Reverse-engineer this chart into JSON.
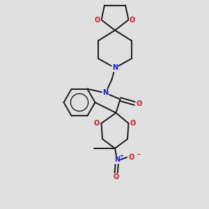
{
  "bg_color": "#e0e0e0",
  "bond_color": "#1a1a1a",
  "bond_width": 1.4,
  "N_color": "#1414cc",
  "O_color": "#cc1414",
  "figsize": [
    3.0,
    3.0
  ],
  "dpi": 100,
  "xlim": [
    0,
    10
  ],
  "ylim": [
    0,
    10
  ]
}
